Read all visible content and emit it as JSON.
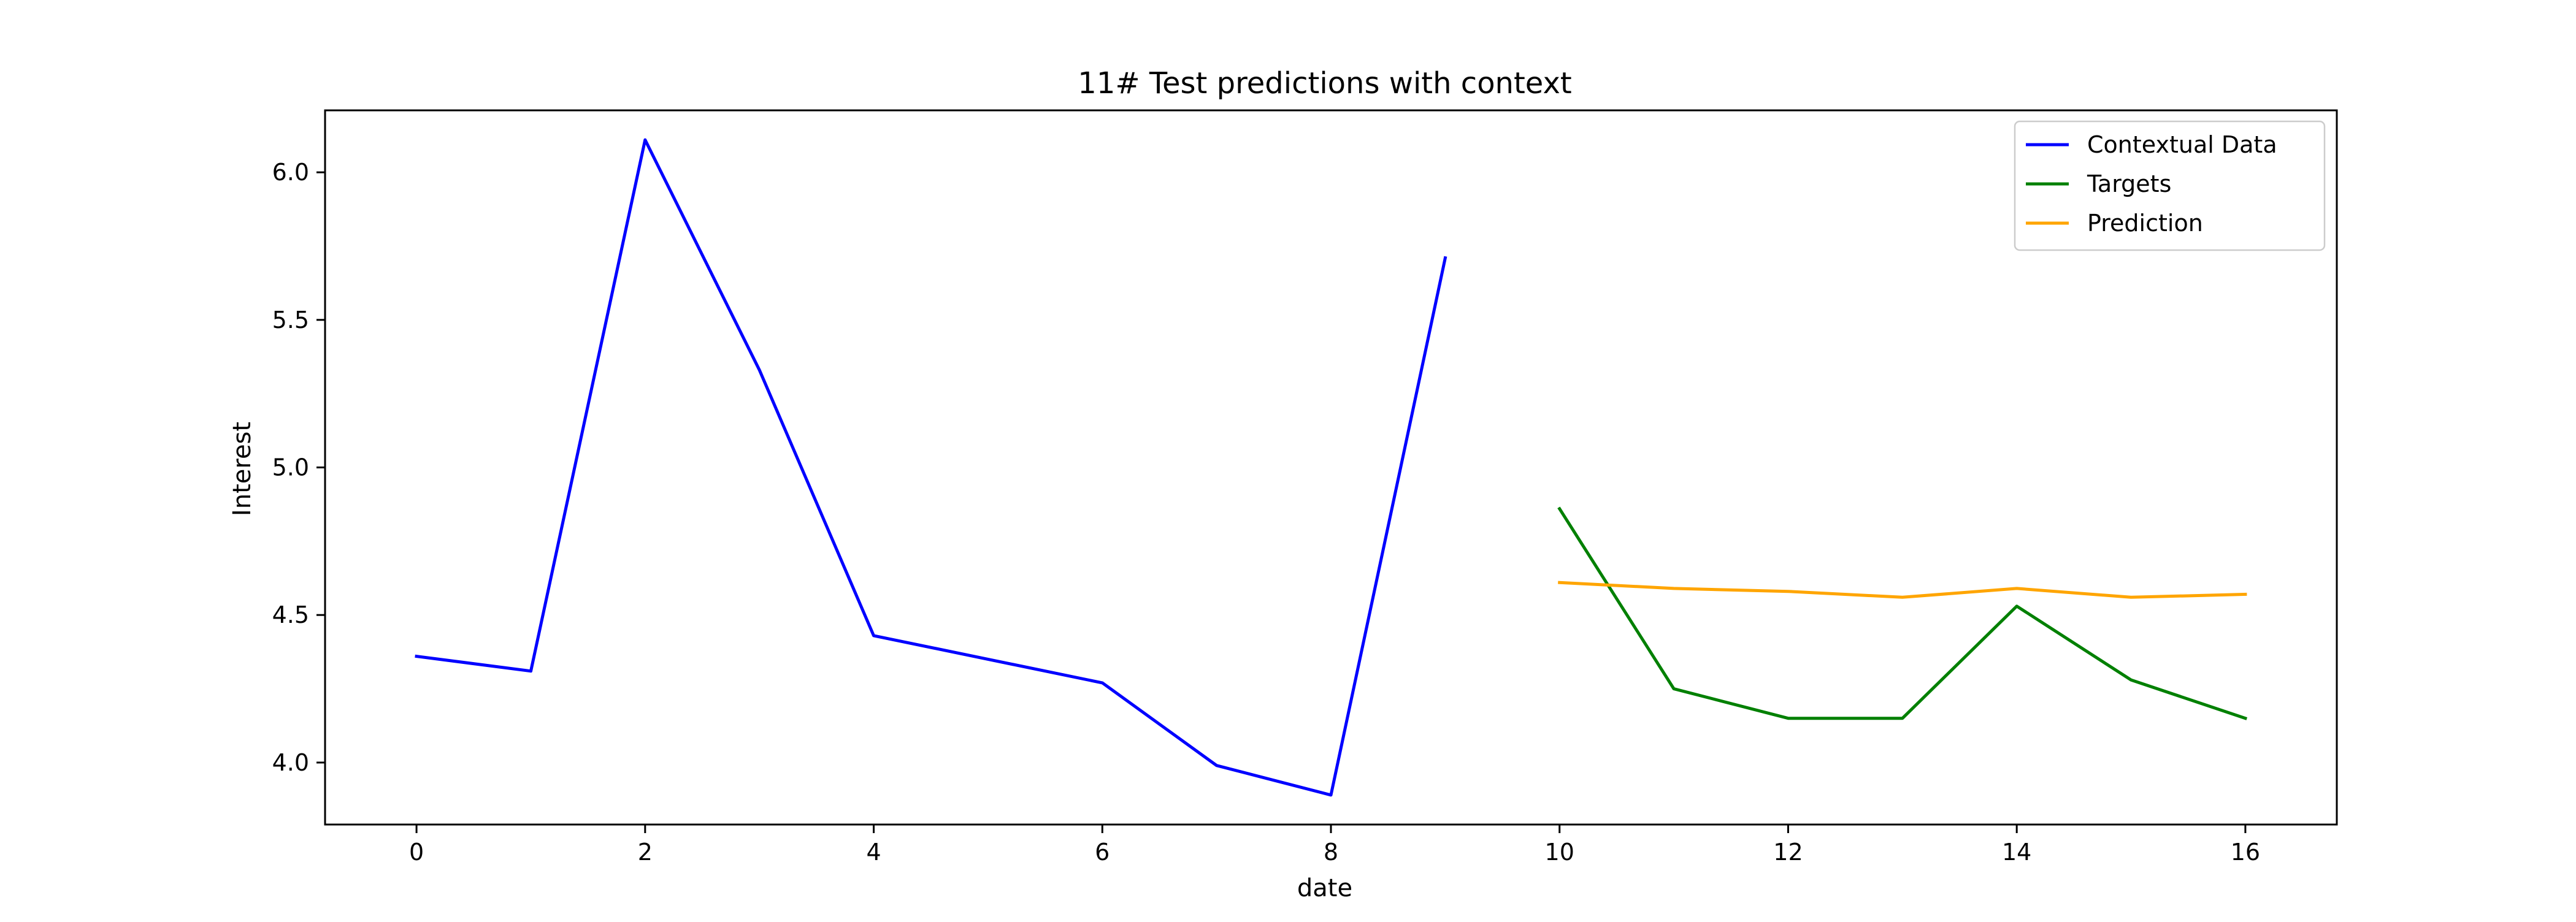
{
  "chart_data": {
    "type": "line",
    "title": "11# Test predictions with context",
    "xlabel": "date",
    "ylabel": "Interest",
    "xlim": [
      -0.8,
      16.8
    ],
    "ylim": [
      3.79,
      6.21
    ],
    "xticks": [
      0,
      2,
      4,
      6,
      8,
      10,
      12,
      14,
      16
    ],
    "yticks": [
      4.0,
      4.5,
      5.0,
      5.5,
      6.0
    ],
    "grid": false,
    "legend_position": "top-right",
    "series": [
      {
        "name": "Contextual Data",
        "color": "#0000ff",
        "x": [
          0,
          1,
          2,
          3,
          4,
          5,
          6,
          7,
          8,
          9
        ],
        "y": [
          4.36,
          4.31,
          6.11,
          5.33,
          4.43,
          4.35,
          4.27,
          3.99,
          3.89,
          5.71
        ]
      },
      {
        "name": "Targets",
        "color": "#008000",
        "x": [
          10,
          11,
          12,
          13,
          14,
          15,
          16
        ],
        "y": [
          4.86,
          4.25,
          4.15,
          4.15,
          4.53,
          4.28,
          4.15
        ]
      },
      {
        "name": "Prediction",
        "color": "#ffa500",
        "x": [
          10,
          11,
          12,
          13,
          14,
          15,
          16
        ],
        "y": [
          4.61,
          4.59,
          4.58,
          4.56,
          4.59,
          4.56,
          4.57
        ]
      }
    ]
  }
}
